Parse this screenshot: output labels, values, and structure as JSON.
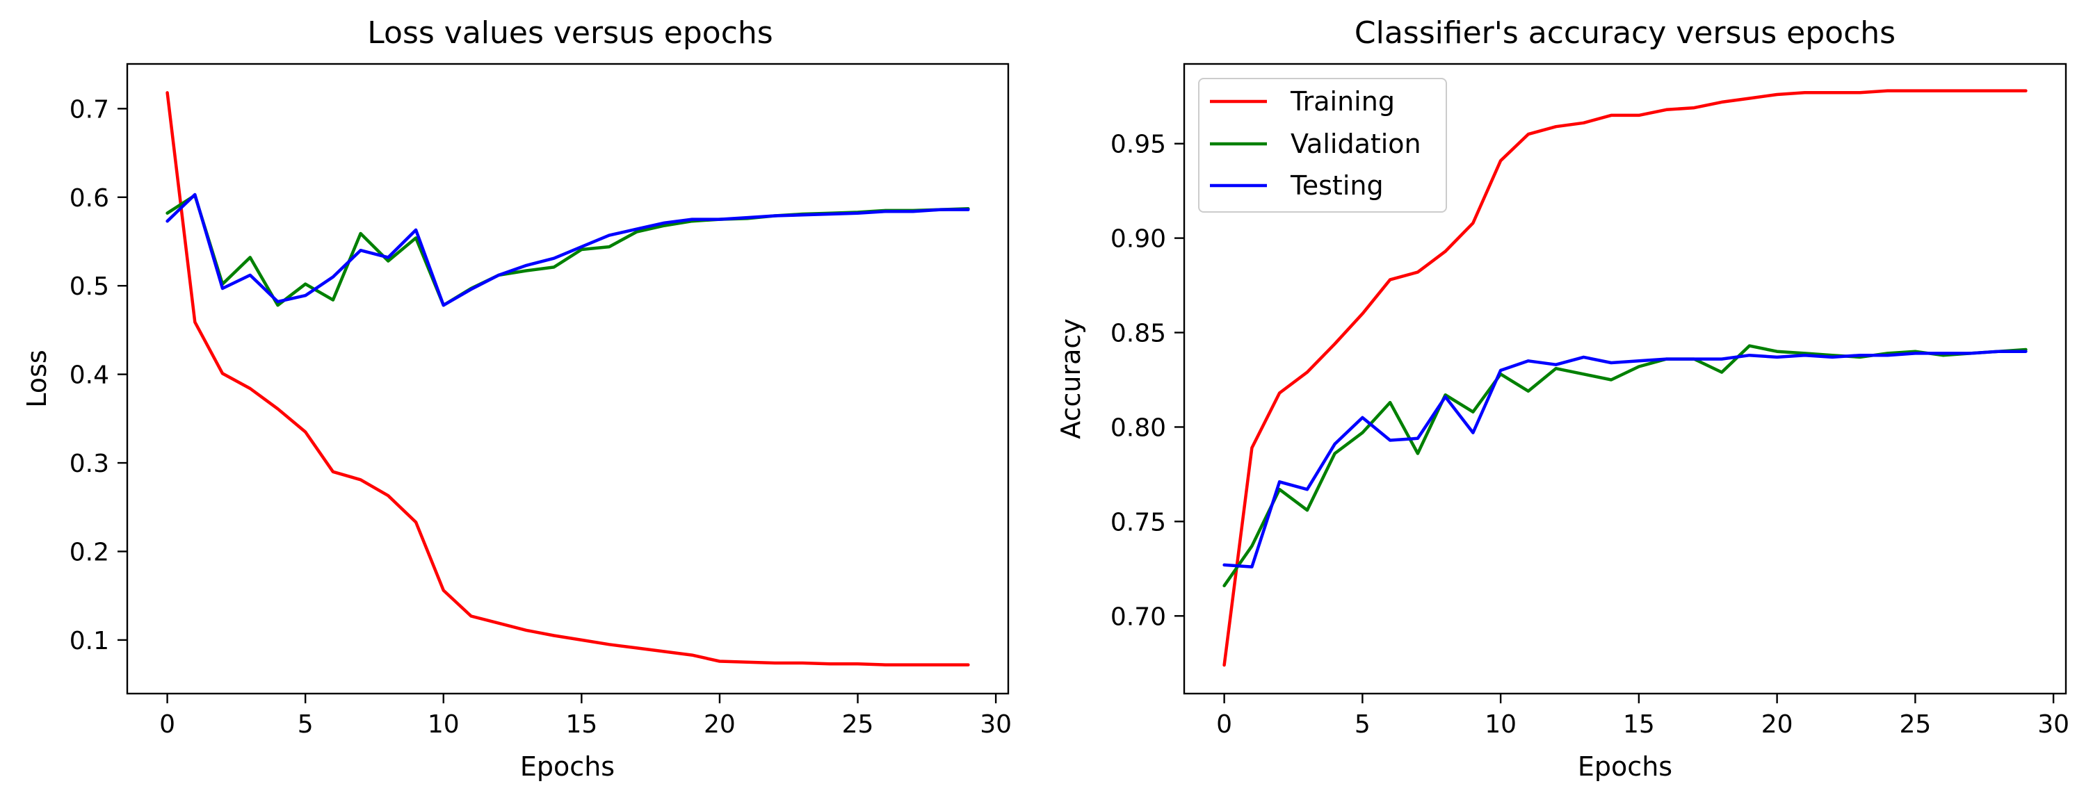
{
  "chart_data": [
    {
      "type": "line",
      "title": "Loss values versus epochs",
      "xlabel": "Epochs",
      "ylabel": "Loss",
      "xlim": [
        -1.45,
        30.45
      ],
      "ylim": [
        0.0395,
        0.7505
      ],
      "xticks": [
        0,
        5,
        10,
        15,
        20,
        25,
        30
      ],
      "yticks": [
        0.1,
        0.2,
        0.3,
        0.4,
        0.5,
        0.6,
        0.7
      ],
      "x": [
        0,
        1,
        2,
        3,
        4,
        5,
        6,
        7,
        8,
        9,
        10,
        11,
        12,
        13,
        14,
        15,
        16,
        17,
        18,
        19,
        20,
        21,
        22,
        23,
        24,
        25,
        26,
        27,
        28,
        29
      ],
      "legend": null,
      "series": [
        {
          "name": "Training",
          "color": "#ff0000",
          "values": [
            0.718,
            0.459,
            0.401,
            0.384,
            0.361,
            0.335,
            0.29,
            0.281,
            0.263,
            0.233,
            0.156,
            0.127,
            0.119,
            0.111,
            0.105,
            0.1,
            0.095,
            0.091,
            0.087,
            0.083,
            0.076,
            0.075,
            0.074,
            0.074,
            0.073,
            0.073,
            0.072,
            0.072,
            0.072,
            0.072
          ]
        },
        {
          "name": "Validation",
          "color": "#008000",
          "values": [
            0.582,
            0.602,
            0.502,
            0.532,
            0.478,
            0.502,
            0.484,
            0.559,
            0.528,
            0.554,
            0.478,
            0.497,
            0.512,
            0.517,
            0.521,
            0.541,
            0.544,
            0.561,
            0.568,
            0.573,
            0.575,
            0.576,
            0.579,
            0.581,
            0.582,
            0.583,
            0.585,
            0.585,
            0.586,
            0.587
          ]
        },
        {
          "name": "Testing",
          "color": "#0000ff",
          "values": [
            0.573,
            0.603,
            0.497,
            0.512,
            0.482,
            0.489,
            0.51,
            0.54,
            0.532,
            0.563,
            0.478,
            0.496,
            0.512,
            0.523,
            0.531,
            0.544,
            0.557,
            0.564,
            0.571,
            0.575,
            0.575,
            0.577,
            0.579,
            0.58,
            0.581,
            0.582,
            0.584,
            0.584,
            0.586,
            0.586
          ]
        }
      ]
    },
    {
      "type": "line",
      "title": "Classifier's accuracy versus epochs",
      "xlabel": "Epochs",
      "ylabel": "Accuracy",
      "xlim": [
        -1.45,
        30.45
      ],
      "ylim": [
        0.6589,
        0.9922
      ],
      "xticks": [
        0,
        5,
        10,
        15,
        20,
        25,
        30
      ],
      "yticks": [
        0.7,
        0.75,
        0.8,
        0.85,
        0.9,
        0.95
      ],
      "x": [
        0,
        1,
        2,
        3,
        4,
        5,
        6,
        7,
        8,
        9,
        10,
        11,
        12,
        13,
        14,
        15,
        16,
        17,
        18,
        19,
        20,
        21,
        22,
        23,
        24,
        25,
        26,
        27,
        28,
        29
      ],
      "legend": "top-left",
      "series": [
        {
          "name": "Training",
          "color": "#ff0000",
          "values": [
            0.674,
            0.789,
            0.818,
            0.829,
            0.844,
            0.86,
            0.878,
            0.882,
            0.893,
            0.908,
            0.941,
            0.955,
            0.959,
            0.961,
            0.965,
            0.965,
            0.968,
            0.969,
            0.972,
            0.974,
            0.976,
            0.977,
            0.977,
            0.977,
            0.978,
            0.978,
            0.978,
            0.978,
            0.978,
            0.978
          ]
        },
        {
          "name": "Validation",
          "color": "#008000",
          "values": [
            0.716,
            0.737,
            0.767,
            0.756,
            0.786,
            0.797,
            0.813,
            0.786,
            0.817,
            0.808,
            0.828,
            0.819,
            0.831,
            0.828,
            0.825,
            0.832,
            0.836,
            0.836,
            0.829,
            0.843,
            0.84,
            0.839,
            0.838,
            0.837,
            0.839,
            0.84,
            0.838,
            0.839,
            0.84,
            0.841
          ]
        },
        {
          "name": "Testing",
          "color": "#0000ff",
          "values": [
            0.727,
            0.726,
            0.771,
            0.767,
            0.791,
            0.805,
            0.793,
            0.794,
            0.816,
            0.797,
            0.83,
            0.835,
            0.833,
            0.837,
            0.834,
            0.835,
            0.836,
            0.836,
            0.836,
            0.838,
            0.837,
            0.838,
            0.837,
            0.838,
            0.838,
            0.839,
            0.839,
            0.839,
            0.84,
            0.84
          ]
        }
      ]
    }
  ]
}
